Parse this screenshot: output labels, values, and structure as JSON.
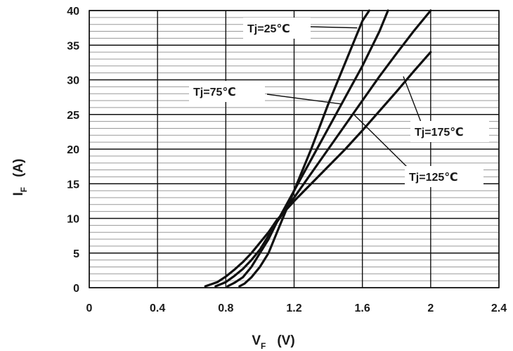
{
  "chart_data": {
    "type": "line",
    "title": "",
    "xlabel": {
      "main": "V",
      "sub": "F",
      "unit": "(V)"
    },
    "ylabel": {
      "main": "I",
      "sub": "F",
      "unit": "(A)"
    },
    "xlim": [
      0,
      2.4
    ],
    "ylim": [
      0,
      40
    ],
    "x_ticks": [
      0,
      0.4,
      0.8,
      1.2,
      1.6,
      2.0,
      2.4
    ],
    "x_tick_labels": [
      "0",
      "0.4",
      "0.8",
      "1.2",
      "1.6",
      "2",
      "2.4"
    ],
    "y_ticks": [
      0,
      5,
      10,
      15,
      20,
      25,
      30,
      35,
      40
    ],
    "y_tick_labels": [
      "0",
      "5",
      "10",
      "15",
      "20",
      "25",
      "30",
      "35",
      "40"
    ],
    "x_major_step": 0.4,
    "y_major_step": 5,
    "y_minor_step": 1,
    "grid": true,
    "series": [
      {
        "name": "Tj=25℃",
        "x": [
          0.88,
          0.91,
          0.95,
          1.0,
          1.05,
          1.1,
          1.15,
          1.2,
          1.3,
          1.4,
          1.5,
          1.6,
          1.64
        ],
        "y": [
          0.2,
          0.6,
          1.5,
          3.0,
          5.0,
          8.0,
          11.0,
          14.0,
          20.0,
          26.5,
          32.5,
          38.5,
          40.0
        ]
      },
      {
        "name": "Tj=75℃",
        "x": [
          0.81,
          0.85,
          0.9,
          0.95,
          1.0,
          1.05,
          1.1,
          1.2,
          1.3,
          1.4,
          1.5,
          1.6,
          1.7,
          1.75
        ],
        "y": [
          0.2,
          0.7,
          1.5,
          3.0,
          5.0,
          7.0,
          9.5,
          14.0,
          18.5,
          23.0,
          27.5,
          32.0,
          37.0,
          40.0
        ]
      },
      {
        "name": "Tj=125℃",
        "x": [
          0.74,
          0.8,
          0.85,
          0.9,
          0.95,
          1.0,
          1.05,
          1.1,
          1.2,
          1.3,
          1.4,
          1.5,
          1.6,
          1.7,
          1.8,
          1.9,
          2.0
        ],
        "y": [
          0.2,
          0.8,
          1.7,
          2.7,
          4.0,
          5.5,
          7.5,
          9.5,
          13.0,
          16.5,
          20.0,
          23.5,
          27.0,
          30.5,
          33.8,
          37.0,
          40.0
        ]
      },
      {
        "name": "Tj=175℃",
        "x": [
          0.68,
          0.75,
          0.8,
          0.85,
          0.9,
          0.95,
          1.0,
          1.05,
          1.1,
          1.2,
          1.3,
          1.4,
          1.5,
          1.6,
          1.7,
          1.8,
          1.9,
          2.0
        ],
        "y": [
          0.2,
          0.8,
          1.6,
          2.6,
          3.7,
          5.0,
          6.5,
          8.0,
          9.8,
          12.5,
          15.0,
          17.5,
          20.0,
          22.7,
          25.5,
          28.3,
          31.2,
          34.0
        ]
      }
    ],
    "annotations": [
      {
        "text": "Tj=25℃",
        "points_to_series": "Tj=25℃",
        "target": [
          1.57,
          37.5
        ]
      },
      {
        "text": "Tj=75℃",
        "points_to_series": "Tj=75℃",
        "target": [
          1.48,
          26.5
        ]
      },
      {
        "text": "Tj=175℃",
        "points_to_series": "Tj=175℃",
        "target": [
          1.84,
          30.5
        ]
      },
      {
        "text": "Tj=125℃",
        "points_to_series": "Tj=125℃",
        "target": [
          1.55,
          25.0
        ]
      }
    ]
  }
}
